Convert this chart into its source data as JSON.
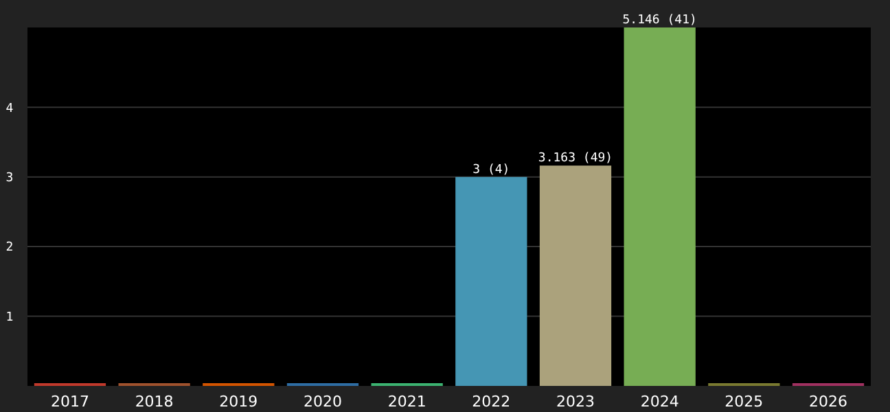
{
  "chart_data": {
    "type": "bar",
    "categories": [
      "2017",
      "2018",
      "2019",
      "2020",
      "2021",
      "2022",
      "2023",
      "2024",
      "2025",
      "2026"
    ],
    "values": [
      0,
      0,
      0,
      0,
      0,
      3,
      3.163,
      5.146,
      0,
      0
    ],
    "colors": [
      "#c0392b",
      "#a0522d",
      "#d35400",
      "#2e6da4",
      "#3cb371",
      "#4596b4",
      "#aba27c",
      "#77ad54",
      "#7a7a30",
      "#a03060"
    ],
    "value_labels": [
      null,
      null,
      null,
      null,
      null,
      "3 (4)",
      "3.163 (49)",
      "5.146 (41)",
      null,
      null
    ],
    "ylim": [
      0,
      5.146
    ],
    "yticks": [
      1,
      2,
      3,
      4
    ],
    "grid": "y"
  }
}
